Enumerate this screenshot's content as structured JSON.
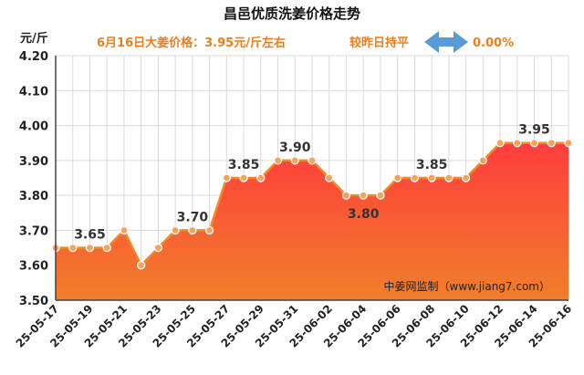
{
  "title": "昌邑优质洗姜价格走势",
  "unit": "元/斤",
  "subtitle_price": "6月16日大姜价格：3.95元/斤左右",
  "subtitle_compare": "较昨日持平",
  "subtitle_change": "0.00%",
  "credit": "中姜网监制（www.jiang7.com）",
  "colors": {
    "line": "#f08a24",
    "area_top": "#ff3d3d",
    "area_bottom": "#f07f2a",
    "arrow": "#5b9bd5",
    "subtitle": "#ef7d1a"
  },
  "chart_data": {
    "type": "area",
    "title": "昌邑优质洗姜价格走势",
    "ylabel": "元/斤",
    "ylim": [
      3.5,
      4.2
    ],
    "yticks": [
      "3.50",
      "3.60",
      "3.70",
      "3.80",
      "3.90",
      "4.00",
      "4.10",
      "4.20"
    ],
    "grid": true,
    "x": [
      "25-05-17",
      "25-05-18",
      "25-05-19",
      "25-05-20",
      "25-05-21",
      "25-05-22",
      "25-05-23",
      "25-05-24",
      "25-05-25",
      "25-05-26",
      "25-05-27",
      "25-05-28",
      "25-05-29",
      "25-05-30",
      "25-05-31",
      "25-06-01",
      "25-06-02",
      "25-06-03",
      "25-06-04",
      "25-06-05",
      "25-06-06",
      "25-06-07",
      "25-06-08",
      "25-06-09",
      "25-06-10",
      "25-06-11",
      "25-06-12",
      "25-06-13",
      "25-06-14",
      "25-06-15",
      "25-06-16"
    ],
    "xtick_labels": [
      "25-05-17",
      "",
      "25-05-19",
      "",
      "25-05-21",
      "",
      "25-05-23",
      "",
      "25-05-25",
      "",
      "25-05-27",
      "",
      "25-05-29",
      "",
      "25-05-31",
      "",
      "25-06-02",
      "",
      "25-06-04",
      "",
      "25-06-06",
      "",
      "25-06-08",
      "",
      "25-06-10",
      "",
      "25-06-12",
      "",
      "25-06-14",
      "",
      "25-06-16"
    ],
    "values": [
      3.65,
      3.65,
      3.65,
      3.65,
      3.7,
      3.6,
      3.65,
      3.7,
      3.7,
      3.7,
      3.85,
      3.85,
      3.85,
      3.9,
      3.9,
      3.9,
      3.85,
      3.8,
      3.8,
      3.8,
      3.85,
      3.85,
      3.85,
      3.85,
      3.85,
      3.9,
      3.95,
      3.95,
      3.95,
      3.95,
      3.95
    ],
    "annotations": [
      {
        "index": 2,
        "text": "3.65",
        "position": "above"
      },
      {
        "index": 8,
        "text": "3.70",
        "position": "above"
      },
      {
        "index": 11,
        "text": "3.85",
        "position": "above"
      },
      {
        "index": 14,
        "text": "3.90",
        "position": "above"
      },
      {
        "index": 18,
        "text": "3.80",
        "position": "below"
      },
      {
        "index": 22,
        "text": "3.85",
        "position": "above"
      },
      {
        "index": 28,
        "text": "3.95",
        "position": "above"
      }
    ]
  }
}
